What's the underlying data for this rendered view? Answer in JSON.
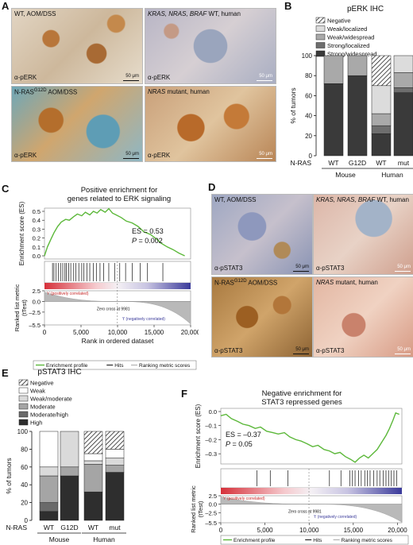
{
  "panels": {
    "A": {
      "letter": "A",
      "images": [
        {
          "top": "WT, AOM/DSS",
          "bottom": "α-pERK",
          "scale": "50 μm"
        },
        {
          "top_italic": "KRAS, NRAS, BRAF",
          "top_plain": " WT, human",
          "bottom": "α-pERK",
          "scale": "50 μm"
        },
        {
          "top_pre": "N-RAS",
          "top_sup": "G12D",
          "top_post": " AOM/DSS",
          "bottom": "α-pERK",
          "scale": "50 μm"
        },
        {
          "top_italic": "NRAS",
          "top_plain": " mutant, human",
          "bottom": "α-pERK",
          "scale": "50 μm"
        }
      ]
    },
    "B": {
      "letter": "B"
    },
    "C": {
      "letter": "C"
    },
    "D": {
      "letter": "D",
      "images": [
        {
          "top": "WT, AOM/DSS",
          "bottom": "α-pSTAT3",
          "scale": "50 μm"
        },
        {
          "top_italic": "KRAS, NRAS, BRAF",
          "top_plain": " WT, human",
          "bottom": "α-pSTAT3",
          "scale": "50 μm"
        },
        {
          "top_pre": "N-RAS",
          "top_sup": "G12D",
          "top_post": " AOM/DSS",
          "bottom": "α-pSTAT3",
          "scale": "50 μm"
        },
        {
          "top_italic": "NRAS",
          "top_plain": " mutant, human",
          "bottom": "α-pSTAT3",
          "scale": "50 μm"
        }
      ]
    },
    "E": {
      "letter": "E"
    },
    "F": {
      "letter": "F"
    }
  },
  "chart_data": [
    {
      "id": "B",
      "type": "bar",
      "stacked": true,
      "title": "pERK IHC",
      "ylabel": "% of tumors",
      "ylim": [
        0,
        100
      ],
      "yticks": [
        0,
        20,
        40,
        60,
        80,
        100
      ],
      "row_label": "N-RAS",
      "categories": [
        "WT",
        "G12D",
        "WT",
        "mut"
      ],
      "groups": [
        {
          "name": "Mouse",
          "categories": [
            0,
            1
          ]
        },
        {
          "name": "Human",
          "categories": [
            2,
            3
          ]
        }
      ],
      "legend_position": "top-left",
      "series": [
        {
          "name": "Strong/widespread",
          "color": "#3a3a3a",
          "values": [
            72,
            80,
            22,
            63
          ]
        },
        {
          "name": "Strong/localized",
          "color": "#6e6e6e",
          "values": [
            0,
            0,
            8,
            5
          ]
        },
        {
          "name": "Weak/widespread",
          "color": "#a9a9a9",
          "values": [
            28,
            20,
            12,
            15
          ]
        },
        {
          "name": "Weak/localized",
          "color": "#dcdcdc",
          "values": [
            0,
            0,
            28,
            17
          ]
        },
        {
          "name": "Negative",
          "color": "hatch",
          "values": [
            0,
            0,
            30,
            0
          ]
        }
      ]
    },
    {
      "id": "C",
      "type": "line",
      "title": "Positive enrichment for genes related to ERK signaling",
      "title_lines": [
        "Positive enrichment for",
        "genes related to ERK signaling"
      ],
      "ylabel": "Enrichment score (ES)",
      "ylabel2_lines": [
        "Ranked list metric",
        "(tTest)"
      ],
      "xlabel": "Rank in ordered dataset",
      "xticks": [
        0,
        5000,
        10000,
        15000,
        20000
      ],
      "xtick_labels": [
        "0",
        "5,000",
        "10,000",
        "15,000",
        "20,000"
      ],
      "xlim": [
        0,
        20000
      ],
      "ylim": [
        0,
        0.5
      ],
      "yticks": [
        0,
        0.1,
        0.2,
        0.3,
        0.4,
        0.5
      ],
      "ytick_labels": [
        "0.0",
        "0.1",
        "0.2",
        "0.3",
        "0.4",
        "0.5"
      ],
      "metric_ylim": [
        -5.5,
        2.5
      ],
      "metric_yticks": [
        2.5,
        0,
        -2.5,
        -5.5
      ],
      "metric_ytick_labels": [
        "2.5",
        "0.0",
        "–2.5",
        "–5.5"
      ],
      "es_text": "ES = 0.53",
      "p_text_italic": "P",
      "p_text_value": " = 0.002",
      "zero_cross_text": "Zero cross at 9981",
      "zero_cross": 9981,
      "pos_label": "'r' (positively correlated)",
      "neg_label": "'t' (negatively correlated)",
      "series": [
        {
          "name": "Enrichment profile",
          "color": "#5cb83a",
          "x": [
            0,
            400,
            900,
            1300,
            1800,
            2300,
            2900,
            3400,
            4000,
            4500,
            5100,
            5600,
            6200,
            6700,
            7200,
            7700,
            8300,
            8800,
            9300,
            9800,
            10500,
            11200,
            12000,
            12800,
            13600,
            14500,
            15300,
            16000,
            16800,
            17600,
            18400,
            19200
          ],
          "y": [
            0.0,
            0.1,
            0.19,
            0.26,
            0.33,
            0.38,
            0.41,
            0.4,
            0.44,
            0.47,
            0.45,
            0.49,
            0.46,
            0.5,
            0.48,
            0.52,
            0.49,
            0.53,
            0.48,
            0.46,
            0.43,
            0.39,
            0.37,
            0.33,
            0.27,
            0.24,
            0.19,
            0.14,
            0.1,
            0.07,
            0.03,
            0.0
          ]
        }
      ],
      "hits_x": [
        1100,
        1300,
        1600,
        1900,
        2200,
        2500,
        2800,
        3000,
        3300,
        3600,
        4000,
        4300,
        4700,
        5100,
        5400,
        5800,
        6200,
        6700,
        7100,
        7600,
        8100,
        8800,
        9600,
        10300,
        11100,
        12000,
        13100,
        14100,
        16200
      ],
      "legend": [
        "Enrichment profile",
        "Hits",
        "Ranking metric scores"
      ]
    },
    {
      "id": "E",
      "type": "bar",
      "stacked": true,
      "title": "pSTAT3 IHC",
      "ylabel": "% of tumors",
      "ylim": [
        0,
        100
      ],
      "yticks": [
        0,
        20,
        40,
        60,
        80,
        100
      ],
      "row_label": "N-RAS",
      "categories": [
        "WT",
        "G12D",
        "WT",
        "mut"
      ],
      "groups": [
        {
          "name": "Mouse",
          "categories": [
            0,
            1
          ]
        },
        {
          "name": "Human",
          "categories": [
            2,
            3
          ]
        }
      ],
      "legend_position": "top-left",
      "series": [
        {
          "name": "High",
          "color": "#2e2e2e",
          "values": [
            10,
            50,
            32,
            54
          ]
        },
        {
          "name": "Moderate/high",
          "color": "#6a6a6a",
          "values": [
            10,
            0,
            0,
            0
          ]
        },
        {
          "name": "Moderate",
          "color": "#a5a5a5",
          "values": [
            30,
            10,
            31,
            8
          ]
        },
        {
          "name": "Weak/moderate",
          "color": "#dadada",
          "values": [
            10,
            40,
            4,
            8
          ]
        },
        {
          "name": "Weak",
          "color": "#ffffff",
          "values": [
            40,
            0,
            8,
            10
          ]
        },
        {
          "name": "Negative",
          "color": "hatch",
          "values": [
            0,
            0,
            25,
            20
          ]
        }
      ]
    },
    {
      "id": "F",
      "type": "line",
      "title": "Negative enrichment for STAT3 repressed genes",
      "title_lines": [
        "Negative enrichment for",
        "STAT3 repressed genes"
      ],
      "ylabel": "Enrichment score (ES)",
      "ylabel2_lines": [
        "Ranked list metric",
        "(tTest)"
      ],
      "xlabel": "Rank in ordered dataset",
      "xticks": [
        0,
        5000,
        10000,
        15000,
        20000
      ],
      "xtick_labels": [
        "0",
        "5,000",
        "10,000",
        "15,000",
        "20,000"
      ],
      "xlim": [
        0,
        20500
      ],
      "ylim": [
        -0.35,
        0.0
      ],
      "yticks": [
        0,
        -0.1,
        -0.2,
        -0.3
      ],
      "ytick_labels": [
        "0.0",
        "–0.1",
        "–0.2",
        "–0.3"
      ],
      "metric_ylim": [
        -5.5,
        2.5
      ],
      "metric_yticks": [
        2.5,
        0,
        -2.5,
        -5.5
      ],
      "metric_ytick_labels": [
        "2.5",
        "0.0",
        "–2.5",
        "–5.5"
      ],
      "es_text": "ES = –0.37",
      "p_text_italic": "P",
      "p_text_value": " = 0.05",
      "zero_cross_text": "Zero cross at 9981",
      "zero_cross": 9981,
      "pos_label": "'r' (positively correlated)",
      "neg_label": "'t' (negatively correlated)",
      "series": [
        {
          "name": "Enrichment profile",
          "color": "#5cb83a",
          "x": [
            0,
            600,
            1200,
            1900,
            2500,
            3200,
            3900,
            4500,
            5200,
            5900,
            6500,
            7200,
            7800,
            8500,
            9100,
            9800,
            10400,
            11000,
            11700,
            12300,
            12900,
            13500,
            14100,
            14700,
            15200,
            15700,
            16200,
            16700,
            17200,
            17700,
            18200,
            18700,
            19100,
            19500,
            19800,
            20200
          ],
          "y": [
            -0.03,
            -0.02,
            -0.05,
            -0.07,
            -0.09,
            -0.1,
            -0.12,
            -0.11,
            -0.14,
            -0.15,
            -0.16,
            -0.15,
            -0.18,
            -0.2,
            -0.21,
            -0.23,
            -0.25,
            -0.24,
            -0.27,
            -0.28,
            -0.3,
            -0.29,
            -0.32,
            -0.34,
            -0.36,
            -0.33,
            -0.31,
            -0.33,
            -0.3,
            -0.27,
            -0.22,
            -0.17,
            -0.12,
            -0.06,
            -0.01,
            -0.02
          ]
        }
      ],
      "hits_x": [
        4100,
        5600,
        7600,
        12300,
        13600,
        14600,
        14900,
        15200,
        15600,
        15900,
        16300,
        16600,
        16900,
        17300,
        17700,
        18000,
        18400,
        18700,
        19000,
        19300,
        19600,
        19900
      ],
      "legend": [
        "Enrichment profile",
        "Hits",
        "Ranking metric scores"
      ]
    }
  ]
}
